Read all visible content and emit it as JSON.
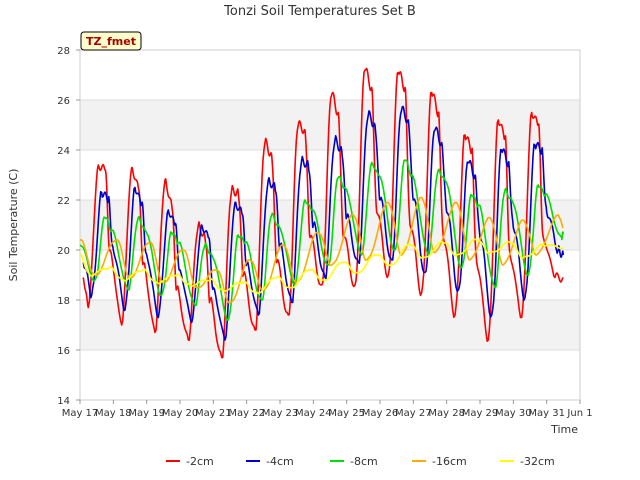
{
  "chart_data": {
    "type": "line",
    "title": "Tonzi Soil Temperatures Set B",
    "xlabel": "Time",
    "ylabel": "Soil Temperature (C)",
    "ylim": [
      14,
      28
    ],
    "yticks": [
      14,
      16,
      18,
      20,
      22,
      24,
      26,
      28
    ],
    "xlim": [
      0,
      15
    ],
    "xticks": [
      0,
      1,
      2,
      3,
      4,
      5,
      6,
      7,
      8,
      9,
      10,
      11,
      12,
      13,
      14,
      15
    ],
    "xtick_labels": [
      "May 17",
      "May 18",
      "May 19",
      "May 20",
      "May 21",
      "May 22",
      "May 23",
      "May 24",
      "May 25",
      "May 26",
      "May 27",
      "May 28",
      "May 29",
      "May 30",
      "May 31",
      "Jun 1"
    ],
    "grid": "horizontal bands",
    "legend_position": "bottom",
    "annotation": "TZ_fmet",
    "series": [
      {
        "name": "-2cm",
        "color": "#ff0000",
        "x": [
          0.1,
          0.25,
          0.55,
          0.75,
          0.9,
          1.25,
          1.55,
          1.75,
          1.9,
          2.25,
          2.55,
          2.75,
          2.9,
          3.25,
          3.55,
          3.75,
          3.9,
          4.25,
          4.55,
          4.75,
          4.9,
          5.25,
          5.55,
          5.75,
          5.9,
          6.25,
          6.55,
          6.75,
          6.9,
          7.25,
          7.55,
          7.75,
          7.9,
          8.25,
          8.55,
          8.75,
          8.9,
          9.25,
          9.55,
          9.75,
          9.9,
          10.25,
          10.55,
          10.75,
          10.9,
          11.25,
          11.55,
          11.75,
          11.9,
          12.25,
          12.55,
          12.75,
          12.9,
          13.25,
          13.55,
          13.75,
          13.9,
          14.25,
          14.5
        ],
        "values": [
          18.9,
          17.7,
          23.4,
          23.2,
          20.0,
          17.0,
          23.3,
          22.5,
          19.5,
          16.7,
          22.8,
          21.8,
          18.5,
          16.4,
          21.0,
          20.5,
          18.0,
          15.7,
          22.4,
          22.3,
          19.0,
          16.8,
          24.3,
          23.8,
          19.5,
          17.4,
          25.0,
          24.8,
          20.5,
          18.6,
          26.2,
          25.5,
          20.5,
          18.6,
          27.2,
          26.5,
          21.5,
          19.0,
          27.1,
          26.5,
          21.0,
          18.3,
          26.3,
          25.5,
          20.5,
          17.4,
          24.6,
          24.0,
          19.5,
          16.4,
          25.2,
          24.5,
          19.8,
          17.3,
          25.5,
          25.0,
          20.5,
          18.9,
          18.9
        ]
      },
      {
        "name": "-4cm",
        "color": "#0000cc",
        "x": [
          0.1,
          0.35,
          0.65,
          0.85,
          1.0,
          1.35,
          1.65,
          1.85,
          2.0,
          2.35,
          2.65,
          2.85,
          3.0,
          3.35,
          3.65,
          3.85,
          4.0,
          4.35,
          4.65,
          4.85,
          5.0,
          5.35,
          5.65,
          5.85,
          6.0,
          6.35,
          6.65,
          6.85,
          7.0,
          7.35,
          7.65,
          7.85,
          8.0,
          8.35,
          8.65,
          8.85,
          9.0,
          9.35,
          9.65,
          9.85,
          10.0,
          10.35,
          10.65,
          10.85,
          11.0,
          11.35,
          11.65,
          11.85,
          12.0,
          12.35,
          12.65,
          12.85,
          13.0,
          13.35,
          13.65,
          13.85,
          14.0,
          14.35,
          14.5
        ],
        "values": [
          19.5,
          18.2,
          22.3,
          22.0,
          20.0,
          17.6,
          22.5,
          21.8,
          19.8,
          17.3,
          21.6,
          21.0,
          19.2,
          17.1,
          21.0,
          20.5,
          18.5,
          16.4,
          21.9,
          21.5,
          19.5,
          17.4,
          22.8,
          22.5,
          20.2,
          17.9,
          23.6,
          23.4,
          21.0,
          18.9,
          24.4,
          24.0,
          21.3,
          19.5,
          25.4,
          25.0,
          22.0,
          19.6,
          25.6,
          25.2,
          22.0,
          19.1,
          24.8,
          24.3,
          21.5,
          18.4,
          23.5,
          23.0,
          20.5,
          17.4,
          24.0,
          23.5,
          20.9,
          18.1,
          24.2,
          24.0,
          21.5,
          20.0,
          19.8
        ]
      },
      {
        "name": "-8cm",
        "color": "#00dd00",
        "x": [
          0.0,
          0.45,
          0.75,
          0.95,
          1.45,
          1.75,
          1.95,
          2.45,
          2.75,
          2.95,
          3.45,
          3.75,
          3.95,
          4.45,
          4.75,
          4.95,
          5.45,
          5.75,
          5.95,
          6.45,
          6.75,
          6.95,
          7.45,
          7.75,
          7.95,
          8.45,
          8.75,
          8.95,
          9.45,
          9.75,
          9.95,
          10.45,
          10.75,
          10.95,
          11.45,
          11.75,
          11.95,
          12.45,
          12.75,
          12.95,
          13.45,
          13.75,
          13.95,
          14.45,
          14.5
        ],
        "values": [
          20.2,
          18.8,
          21.3,
          20.8,
          18.4,
          21.3,
          20.8,
          18.2,
          20.7,
          20.3,
          17.8,
          20.2,
          19.8,
          17.2,
          20.6,
          20.3,
          18.0,
          21.4,
          21.0,
          18.6,
          22.0,
          21.6,
          19.4,
          22.9,
          22.5,
          19.8,
          23.5,
          23.0,
          20.0,
          23.6,
          23.0,
          19.8,
          23.2,
          22.8,
          19.3,
          22.2,
          21.8,
          18.5,
          22.4,
          22.0,
          19.0,
          22.6,
          22.2,
          20.5,
          20.7
        ]
      },
      {
        "name": "-16cm",
        "color": "#ffaa00",
        "x": [
          0.0,
          0.45,
          1.1,
          1.5,
          2.1,
          2.5,
          3.1,
          3.5,
          4.1,
          4.5,
          5.1,
          5.5,
          6.1,
          6.5,
          7.15,
          7.55,
          8.2,
          8.6,
          9.25,
          9.65,
          10.25,
          10.65,
          11.3,
          11.7,
          12.3,
          12.7,
          13.3,
          13.7,
          14.35,
          14.5
        ],
        "values": [
          20.4,
          19.0,
          20.4,
          18.9,
          20.3,
          18.7,
          20.0,
          18.5,
          19.2,
          17.9,
          19.6,
          18.4,
          20.2,
          18.7,
          20.7,
          19.4,
          21.4,
          19.6,
          21.9,
          19.8,
          22.1,
          19.9,
          21.9,
          19.6,
          21.3,
          19.4,
          21.2,
          19.8,
          21.4,
          20.9
        ]
      },
      {
        "name": "-32cm",
        "color": "#ffff00",
        "x": [
          0.0,
          0.3,
          0.9,
          1.3,
          1.9,
          2.3,
          2.9,
          3.3,
          3.9,
          4.3,
          4.9,
          5.3,
          5.9,
          6.3,
          6.9,
          7.3,
          7.9,
          8.3,
          8.9,
          9.3,
          9.9,
          10.3,
          10.9,
          11.3,
          11.9,
          12.3,
          12.9,
          13.3,
          13.9,
          14.5
        ],
        "values": [
          19.8,
          19.0,
          19.3,
          18.8,
          19.2,
          18.7,
          19.0,
          18.6,
          18.8,
          18.4,
          18.7,
          18.3,
          18.9,
          18.5,
          19.2,
          18.8,
          19.5,
          19.1,
          19.8,
          19.4,
          20.2,
          19.7,
          20.3,
          19.8,
          20.4,
          19.9,
          20.3,
          19.7,
          20.2,
          20.1
        ]
      }
    ]
  }
}
